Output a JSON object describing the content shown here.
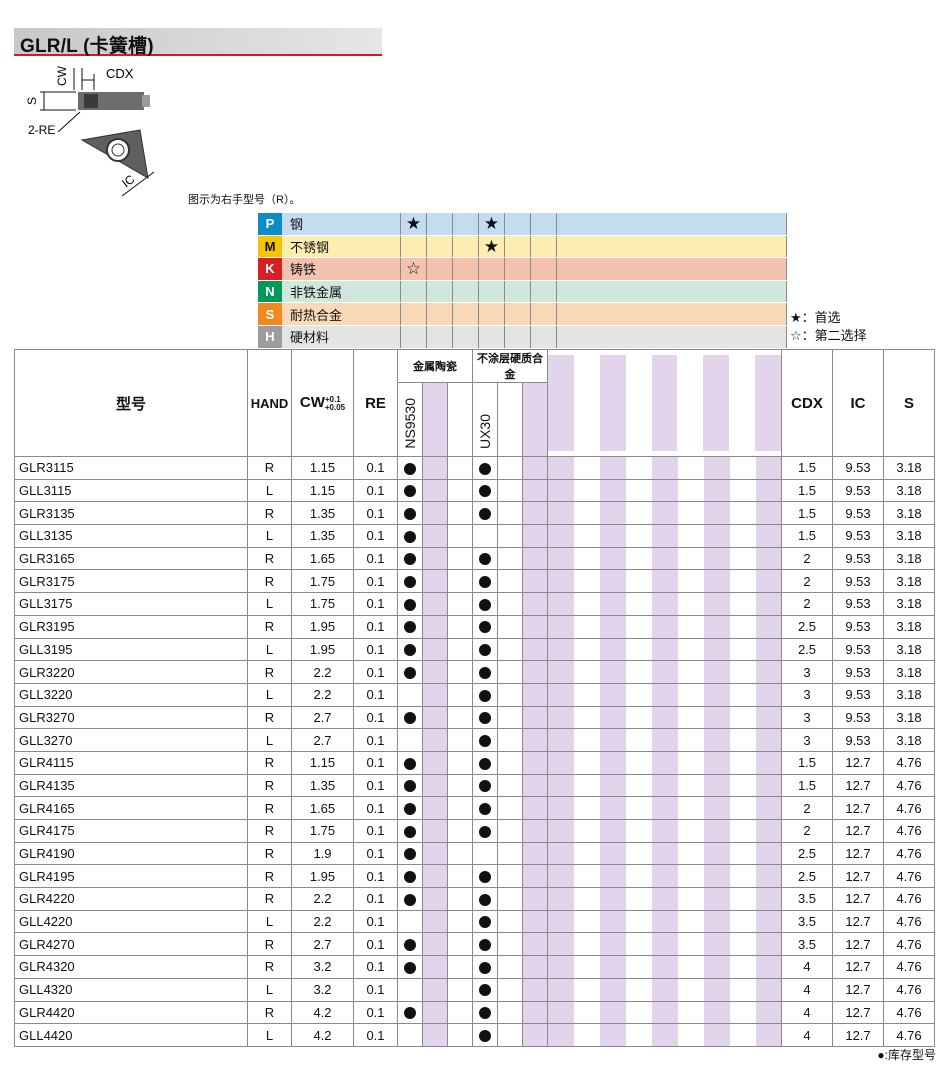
{
  "title": "GLR/L (卡簧槽)",
  "diagram": {
    "labels": {
      "cw": "CW",
      "cdx": "CDX",
      "s": "S",
      "re": "2-RE",
      "ic": "IC"
    }
  },
  "note": "图示为右手型号（R）。",
  "colors": {
    "P": "#0b8cc6",
    "M": "#f5c400",
    "K": "#d81f26",
    "N": "#00995a",
    "S": "#f08a1f",
    "H": "#9d9d9d"
  },
  "materials": [
    {
      "code": "P",
      "label": "钢",
      "bg": "#c3dcf0",
      "ns": "★",
      "ux": "★"
    },
    {
      "code": "M",
      "label": "不锈钢",
      "bg": "#fbeeb0",
      "ns": "",
      "ux": "★"
    },
    {
      "code": "K",
      "label": "铸铁",
      "bg": "#f3c3b0",
      "ns": "☆",
      "ux": ""
    },
    {
      "code": "N",
      "label": "非铁金属",
      "bg": "#cfe7dc",
      "ns": "",
      "ux": ""
    },
    {
      "code": "S",
      "label": "耐热合金",
      "bg": "#f9d9b8",
      "ns": "",
      "ux": ""
    },
    {
      "code": "H",
      "label": "硬材料",
      "bg": "#e4e4e4",
      "ns": "",
      "ux": ""
    }
  ],
  "legend": {
    "primary": "★：首选",
    "secondary": "☆：第二选择"
  },
  "headers": {
    "model": "型号",
    "hand": "HAND",
    "cw": "CW",
    "cw_tol_plus": "+0.1",
    "cw_tol_minus": "+0.05",
    "re": "RE",
    "group1": "金属陶瓷",
    "group2": "不涂层硬质合金",
    "grade1": "NS9530",
    "grade2": "UX30",
    "cdx": "CDX",
    "ic": "IC",
    "s": "S"
  },
  "rows": [
    {
      "model": "GLR3115",
      "hand": "R",
      "cw": "1.15",
      "re": "0.1",
      "ns": true,
      "ux": true,
      "cdx": "1.5",
      "ic": "9.53",
      "s": "3.18"
    },
    {
      "model": "GLL3115",
      "hand": "L",
      "cw": "1.15",
      "re": "0.1",
      "ns": true,
      "ux": true,
      "cdx": "1.5",
      "ic": "9.53",
      "s": "3.18"
    },
    {
      "model": "GLR3135",
      "hand": "R",
      "cw": "1.35",
      "re": "0.1",
      "ns": true,
      "ux": true,
      "cdx": "1.5",
      "ic": "9.53",
      "s": "3.18"
    },
    {
      "model": "GLL3135",
      "hand": "L",
      "cw": "1.35",
      "re": "0.1",
      "ns": true,
      "ux": false,
      "cdx": "1.5",
      "ic": "9.53",
      "s": "3.18"
    },
    {
      "model": "GLR3165",
      "hand": "R",
      "cw": "1.65",
      "re": "0.1",
      "ns": true,
      "ux": true,
      "cdx": "2",
      "ic": "9.53",
      "s": "3.18"
    },
    {
      "model": "GLR3175",
      "hand": "R",
      "cw": "1.75",
      "re": "0.1",
      "ns": true,
      "ux": true,
      "cdx": "2",
      "ic": "9.53",
      "s": "3.18"
    },
    {
      "model": "GLL3175",
      "hand": "L",
      "cw": "1.75",
      "re": "0.1",
      "ns": true,
      "ux": true,
      "cdx": "2",
      "ic": "9.53",
      "s": "3.18"
    },
    {
      "model": "GLR3195",
      "hand": "R",
      "cw": "1.95",
      "re": "0.1",
      "ns": true,
      "ux": true,
      "cdx": "2.5",
      "ic": "9.53",
      "s": "3.18"
    },
    {
      "model": "GLL3195",
      "hand": "L",
      "cw": "1.95",
      "re": "0.1",
      "ns": true,
      "ux": true,
      "cdx": "2.5",
      "ic": "9.53",
      "s": "3.18"
    },
    {
      "model": "GLR3220",
      "hand": "R",
      "cw": "2.2",
      "re": "0.1",
      "ns": true,
      "ux": true,
      "cdx": "3",
      "ic": "9.53",
      "s": "3.18"
    },
    {
      "model": "GLL3220",
      "hand": "L",
      "cw": "2.2",
      "re": "0.1",
      "ns": false,
      "ux": true,
      "cdx": "3",
      "ic": "9.53",
      "s": "3.18"
    },
    {
      "model": "GLR3270",
      "hand": "R",
      "cw": "2.7",
      "re": "0.1",
      "ns": true,
      "ux": true,
      "cdx": "3",
      "ic": "9.53",
      "s": "3.18"
    },
    {
      "model": "GLL3270",
      "hand": "L",
      "cw": "2.7",
      "re": "0.1",
      "ns": false,
      "ux": true,
      "cdx": "3",
      "ic": "9.53",
      "s": "3.18"
    },
    {
      "model": "GLR4115",
      "hand": "R",
      "cw": "1.15",
      "re": "0.1",
      "ns": true,
      "ux": true,
      "cdx": "1.5",
      "ic": "12.7",
      "s": "4.76"
    },
    {
      "model": "GLR4135",
      "hand": "R",
      "cw": "1.35",
      "re": "0.1",
      "ns": true,
      "ux": true,
      "cdx": "1.5",
      "ic": "12.7",
      "s": "4.76"
    },
    {
      "model": "GLR4165",
      "hand": "R",
      "cw": "1.65",
      "re": "0.1",
      "ns": true,
      "ux": true,
      "cdx": "2",
      "ic": "12.7",
      "s": "4.76"
    },
    {
      "model": "GLR4175",
      "hand": "R",
      "cw": "1.75",
      "re": "0.1",
      "ns": true,
      "ux": true,
      "cdx": "2",
      "ic": "12.7",
      "s": "4.76"
    },
    {
      "model": "GLR4190",
      "hand": "R",
      "cw": "1.9",
      "re": "0.1",
      "ns": true,
      "ux": false,
      "cdx": "2.5",
      "ic": "12.7",
      "s": "4.76"
    },
    {
      "model": "GLR4195",
      "hand": "R",
      "cw": "1.95",
      "re": "0.1",
      "ns": true,
      "ux": true,
      "cdx": "2.5",
      "ic": "12.7",
      "s": "4.76"
    },
    {
      "model": "GLR4220",
      "hand": "R",
      "cw": "2.2",
      "re": "0.1",
      "ns": true,
      "ux": true,
      "cdx": "3.5",
      "ic": "12.7",
      "s": "4.76"
    },
    {
      "model": "GLL4220",
      "hand": "L",
      "cw": "2.2",
      "re": "0.1",
      "ns": false,
      "ux": true,
      "cdx": "3.5",
      "ic": "12.7",
      "s": "4.76"
    },
    {
      "model": "GLR4270",
      "hand": "R",
      "cw": "2.7",
      "re": "0.1",
      "ns": true,
      "ux": true,
      "cdx": "3.5",
      "ic": "12.7",
      "s": "4.76"
    },
    {
      "model": "GLR4320",
      "hand": "R",
      "cw": "3.2",
      "re": "0.1",
      "ns": true,
      "ux": true,
      "cdx": "4",
      "ic": "12.7",
      "s": "4.76"
    },
    {
      "model": "GLL4320",
      "hand": "L",
      "cw": "3.2",
      "re": "0.1",
      "ns": false,
      "ux": true,
      "cdx": "4",
      "ic": "12.7",
      "s": "4.76"
    },
    {
      "model": "GLR4420",
      "hand": "R",
      "cw": "4.2",
      "re": "0.1",
      "ns": true,
      "ux": true,
      "cdx": "4",
      "ic": "12.7",
      "s": "4.76"
    },
    {
      "model": "GLL4420",
      "hand": "L",
      "cw": "4.2",
      "re": "0.1",
      "ns": false,
      "ux": true,
      "cdx": "4",
      "ic": "12.7",
      "s": "4.76"
    }
  ],
  "footer_note": "●:库存型号"
}
